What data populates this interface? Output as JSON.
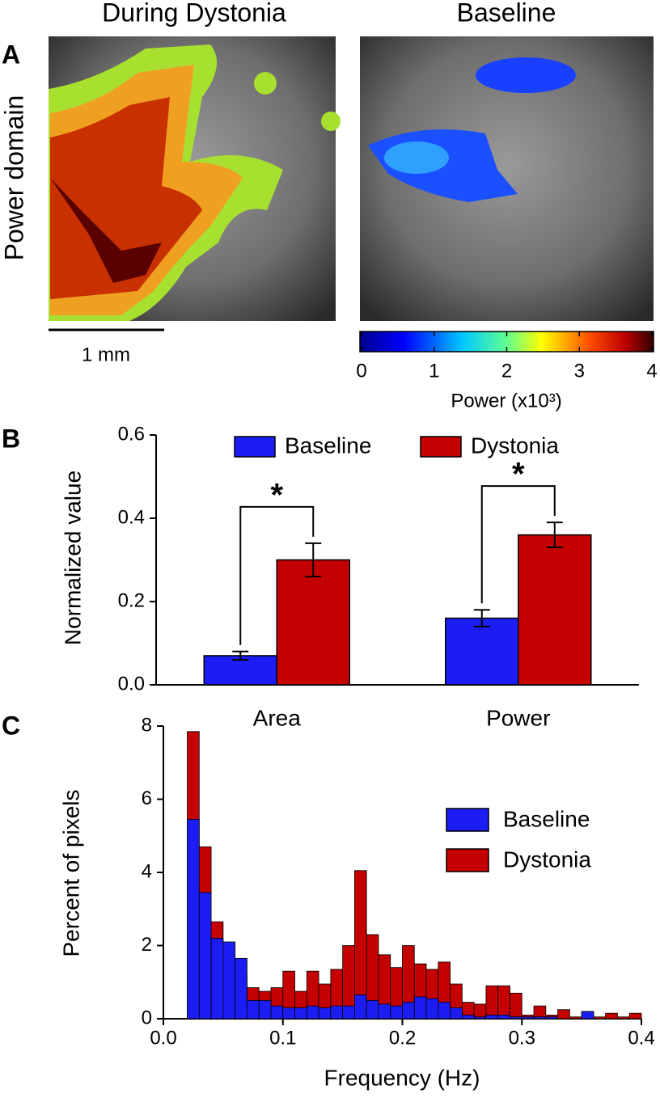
{
  "panel_a": {
    "panel_label": "A",
    "title_left": "During Dystonia",
    "title_right": "Baseline",
    "row_label": "Power domain",
    "scale_bar": "1 mm",
    "colorbar": {
      "label": "Power (x10³)",
      "lim": [
        0,
        4
      ],
      "ticks": [
        0,
        1,
        2,
        3,
        4
      ]
    }
  },
  "chart_data": [
    {
      "type": "bar",
      "panel_label": "B",
      "ylabel": "Normalized value",
      "categories": [
        "Area",
        "Power"
      ],
      "series": [
        {
          "name": "Baseline",
          "color": "#1c1cf5",
          "values": [
            0.07,
            0.16
          ],
          "errors": [
            0.01,
            0.02
          ]
        },
        {
          "name": "Dystonia",
          "color": "#c40000",
          "values": [
            0.3,
            0.36
          ],
          "errors": [
            0.04,
            0.03
          ]
        }
      ],
      "annotations": [
        "*",
        "*"
      ],
      "ylim": [
        0,
        0.6
      ],
      "yticks": [
        {
          "value": 0,
          "label": "0.0"
        },
        0.2,
        0.4,
        0.6
      ],
      "legend": "upper center"
    },
    {
      "type": "histogram",
      "panel_label": "C",
      "xlabel": "Frequency (Hz)",
      "ylabel": "Percent of pixels",
      "bins": [
        0.02,
        0.03,
        0.04,
        0.05,
        0.06,
        0.07,
        0.08,
        0.09,
        0.1,
        0.11,
        0.12,
        0.13,
        0.14,
        0.15,
        0.16,
        0.17,
        0.18,
        0.19,
        0.2,
        0.21,
        0.22,
        0.23,
        0.24,
        0.25,
        0.26,
        0.27,
        0.28,
        0.29,
        0.3,
        0.31,
        0.32,
        0.33,
        0.34,
        0.35,
        0.36,
        0.37,
        0.38,
        0.39,
        0.4
      ],
      "series": [
        {
          "name": "Baseline",
          "color": "#1c1cf5",
          "values": [
            5.45,
            3.45,
            2.2,
            2.1,
            1.65,
            0.5,
            0.5,
            0.35,
            0.3,
            0.3,
            0.35,
            0.3,
            0.35,
            0.35,
            0.65,
            0.5,
            0.4,
            0.35,
            0.45,
            0.6,
            0.55,
            0.45,
            0.3,
            0.1,
            0.05,
            0.1,
            0.1,
            0.05,
            0.05,
            0.05,
            0.05,
            0,
            0,
            0.2,
            0,
            0,
            0,
            0
          ]
        },
        {
          "name": "Dystonia",
          "color": "#c40000",
          "values": [
            7.85,
            4.7,
            2.65,
            1.9,
            1.2,
            0.85,
            0.75,
            0.85,
            1.3,
            0.75,
            1.3,
            0.95,
            1.35,
            2.0,
            4.05,
            2.3,
            1.75,
            1.4,
            2.0,
            1.5,
            1.35,
            1.55,
            0.95,
            0.45,
            0.4,
            0.9,
            0.9,
            0.7,
            0.1,
            0.35,
            0.1,
            0.25,
            0.05,
            0.2,
            0.05,
            0.15,
            0.05,
            0.15
          ]
        }
      ],
      "xlim": [
        0,
        0.4
      ],
      "xticks": [
        {
          "value": 0,
          "label": "0.0"
        },
        0.1,
        0.2,
        0.3,
        0.4
      ],
      "ylim": [
        0,
        8
      ],
      "yticks": [
        0,
        2,
        4,
        6,
        8
      ],
      "legend": "upper right"
    }
  ]
}
